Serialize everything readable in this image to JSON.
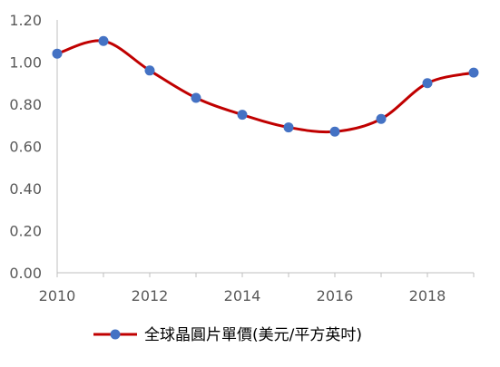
{
  "chart_data": {
    "type": "line",
    "title": "",
    "xlabel": "",
    "ylabel": "",
    "x": [
      2010,
      2011,
      2012,
      2013,
      2014,
      2015,
      2016,
      2017,
      2018,
      2019
    ],
    "x_tick_labels": [
      "2010",
      "2012",
      "2014",
      "2016",
      "2018"
    ],
    "y_tick_labels": [
      "0.00",
      "0.20",
      "0.40",
      "0.60",
      "0.80",
      "1.00",
      "1.20"
    ],
    "xlim": [
      2010,
      2019
    ],
    "ylim": [
      0,
      1.2
    ],
    "grid": false,
    "legend_position": "bottom",
    "series": [
      {
        "name": "全球晶圓片單價(美元/平方英吋)",
        "values": [
          1.04,
          1.1,
          0.96,
          0.83,
          0.75,
          0.69,
          0.67,
          0.73,
          0.9,
          0.95
        ],
        "line_color": "#c00000",
        "marker_color": "#4472c4"
      }
    ]
  }
}
